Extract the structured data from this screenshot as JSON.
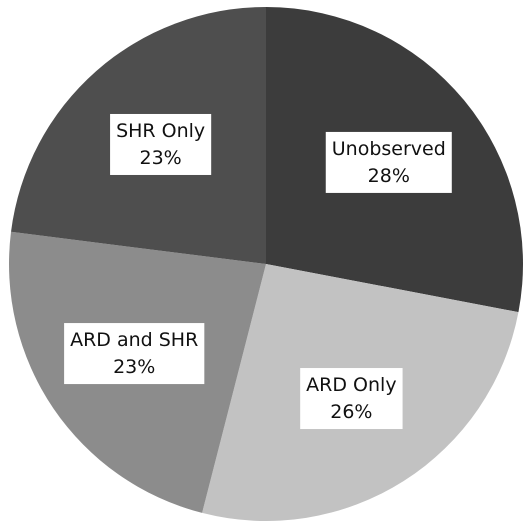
{
  "chart_data": {
    "type": "pie",
    "categories": [
      "Unobserved",
      "ARD Only",
      "ARD and SHR",
      "SHR Only"
    ],
    "values": [
      28,
      26,
      23,
      23
    ],
    "value_labels": [
      "28%",
      "26%",
      "23%",
      "23%"
    ],
    "colors": [
      "#3c3c3c",
      "#c2c2c2",
      "#8c8c8c",
      "#4e4e4e"
    ]
  }
}
